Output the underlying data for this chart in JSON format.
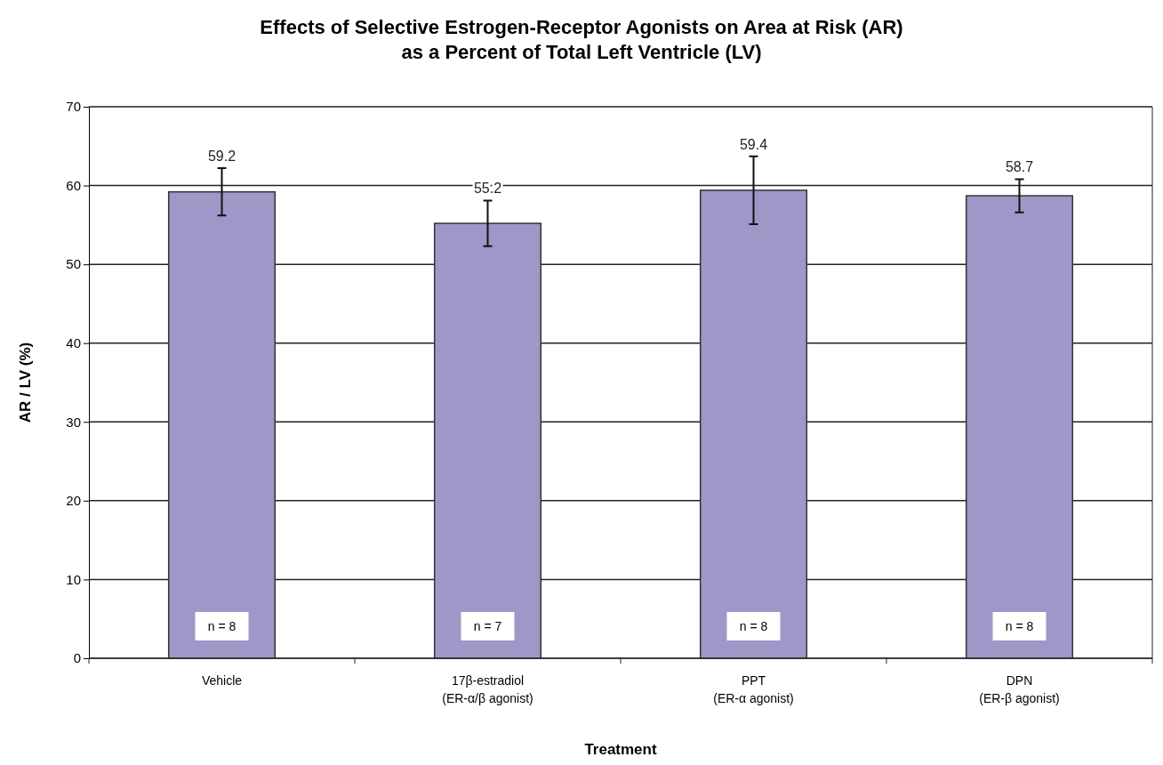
{
  "chart_data": {
    "type": "bar",
    "title": "Effects of Selective Estrogen-Receptor Agonists on Area at Risk (AR)\nas a Percent of Total Left Ventricle (LV)",
    "xlabel": "Treatment",
    "ylabel": "AR / LV (%)",
    "categories": [
      "Vehicle\n",
      "17β-estradiol\n(ER-α/β agonist)",
      "PPT\n(ER-α agonist)",
      "DPN\n(ER-β agonist)"
    ],
    "values": [
      59.2,
      55.2,
      59.4,
      58.7
    ],
    "color": "#9e97c8",
    "errors": [
      3.0,
      2.9,
      4.3,
      2.1
    ],
    "data_labels": true,
    "annotations": [
      "n = 8",
      "n = 7",
      "n = 8",
      "n = 8"
    ],
    "ylim": [
      0,
      70
    ],
    "yticks": [
      0,
      10,
      20,
      30,
      40,
      50,
      60,
      70
    ],
    "grid": "y"
  }
}
